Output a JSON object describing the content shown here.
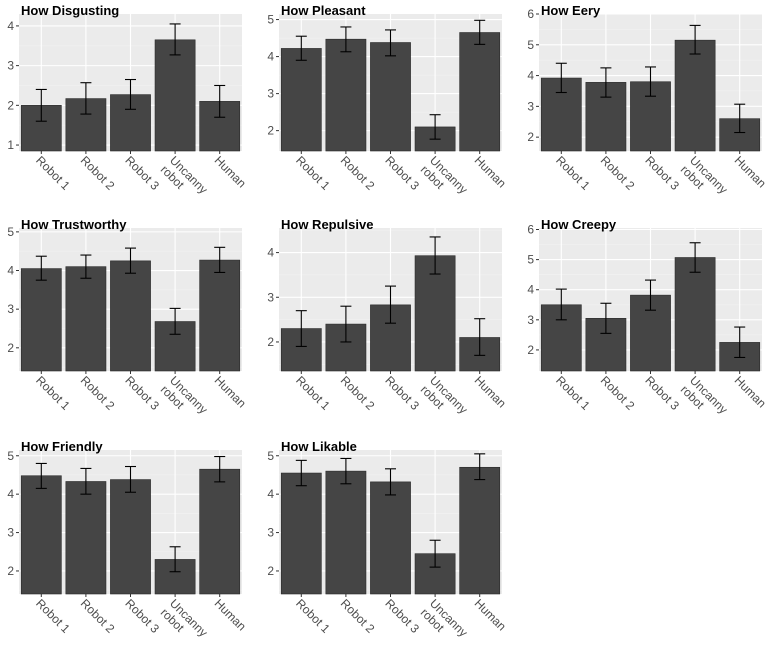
{
  "chart_data": [
    {
      "type": "bar",
      "title": "How Disgusting",
      "categories": [
        "Robot 1",
        "Robot 2",
        "Robot 3",
        "Uncanny robot",
        "Human"
      ],
      "values": [
        2.0,
        2.17,
        2.27,
        3.65,
        2.1
      ],
      "error_low": [
        1.6,
        1.78,
        1.9,
        3.27,
        1.7
      ],
      "error_high": [
        2.4,
        2.57,
        2.65,
        4.05,
        2.5
      ],
      "ylim": [
        0.85,
        4.3
      ],
      "yticks": [
        1,
        2,
        3,
        4
      ]
    },
    {
      "type": "bar",
      "title": "How Pleasant",
      "categories": [
        "Robot 1",
        "Robot 2",
        "Robot 3",
        "Uncanny robot",
        "Human"
      ],
      "values": [
        4.22,
        4.47,
        4.38,
        2.1,
        4.65
      ],
      "error_low": [
        3.9,
        4.13,
        4.02,
        1.77,
        4.33
      ],
      "error_high": [
        4.55,
        4.8,
        4.72,
        2.43,
        4.98
      ],
      "ylim": [
        1.45,
        5.15
      ],
      "yticks": [
        2,
        3,
        4,
        5
      ]
    },
    {
      "type": "bar",
      "title": "How Eery",
      "categories": [
        "Robot 1",
        "Robot 2",
        "Robot 3",
        "Uncanny robot",
        "Human"
      ],
      "values": [
        3.92,
        3.78,
        3.8,
        5.15,
        2.6
      ],
      "error_low": [
        3.45,
        3.3,
        3.33,
        4.7,
        2.15
      ],
      "error_high": [
        4.4,
        4.25,
        4.28,
        5.63,
        3.07
      ],
      "ylim": [
        1.55,
        6.0
      ],
      "yticks": [
        2,
        3,
        4,
        5,
        6
      ]
    },
    {
      "type": "bar",
      "title": "How Trustworthy",
      "categories": [
        "Robot 1",
        "Robot 2",
        "Robot 3",
        "Uncanny robot",
        "Human"
      ],
      "values": [
        4.05,
        4.1,
        4.25,
        2.68,
        4.27
      ],
      "error_low": [
        3.75,
        3.8,
        3.93,
        2.35,
        3.95
      ],
      "error_high": [
        4.37,
        4.4,
        4.58,
        3.02,
        4.6
      ],
      "ylim": [
        1.4,
        5.1
      ],
      "yticks": [
        2,
        3,
        4,
        5
      ]
    },
    {
      "type": "bar",
      "title": "How Repulsive",
      "categories": [
        "Robot 1",
        "Robot 2",
        "Robot 3",
        "Uncanny robot",
        "Human"
      ],
      "values": [
        2.3,
        2.4,
        2.83,
        3.93,
        2.1
      ],
      "error_low": [
        1.9,
        2.0,
        2.42,
        3.52,
        1.7
      ],
      "error_high": [
        2.7,
        2.8,
        3.25,
        4.35,
        2.52
      ],
      "ylim": [
        1.35,
        4.55
      ],
      "yticks": [
        2,
        3,
        4
      ]
    },
    {
      "type": "bar",
      "title": "How Creepy",
      "categories": [
        "Robot 1",
        "Robot 2",
        "Robot 3",
        "Uncanny robot",
        "Human"
      ],
      "values": [
        3.5,
        3.05,
        3.82,
        5.07,
        2.25
      ],
      "error_low": [
        3.0,
        2.55,
        3.32,
        4.58,
        1.75
      ],
      "error_high": [
        4.02,
        3.55,
        4.32,
        5.56,
        2.76
      ],
      "ylim": [
        1.3,
        6.05
      ],
      "yticks": [
        2,
        3,
        4,
        5,
        6
      ]
    },
    {
      "type": "bar",
      "title": "How Friendly",
      "categories": [
        "Robot 1",
        "Robot 2",
        "Robot 3",
        "Uncanny robot",
        "Human"
      ],
      "values": [
        4.48,
        4.33,
        4.38,
        2.3,
        4.65
      ],
      "error_low": [
        4.15,
        4.0,
        4.05,
        1.98,
        4.32
      ],
      "error_high": [
        4.8,
        4.67,
        4.72,
        2.63,
        4.98
      ],
      "ylim": [
        1.4,
        5.15
      ],
      "yticks": [
        2,
        3,
        4,
        5
      ]
    },
    {
      "type": "bar",
      "title": "How Likable",
      "categories": [
        "Robot 1",
        "Robot 2",
        "Robot 3",
        "Uncanny robot",
        "Human"
      ],
      "values": [
        4.55,
        4.6,
        4.32,
        2.45,
        4.7
      ],
      "error_low": [
        4.22,
        4.27,
        3.98,
        2.1,
        4.38
      ],
      "error_high": [
        4.88,
        4.93,
        4.66,
        2.8,
        5.05
      ],
      "ylim": [
        1.4,
        5.15
      ],
      "yticks": [
        2,
        3,
        4,
        5
      ]
    }
  ],
  "colors": {
    "panel_bg": "#ebebeb",
    "bar_fill": "#454545",
    "grid": "#ffffff"
  }
}
